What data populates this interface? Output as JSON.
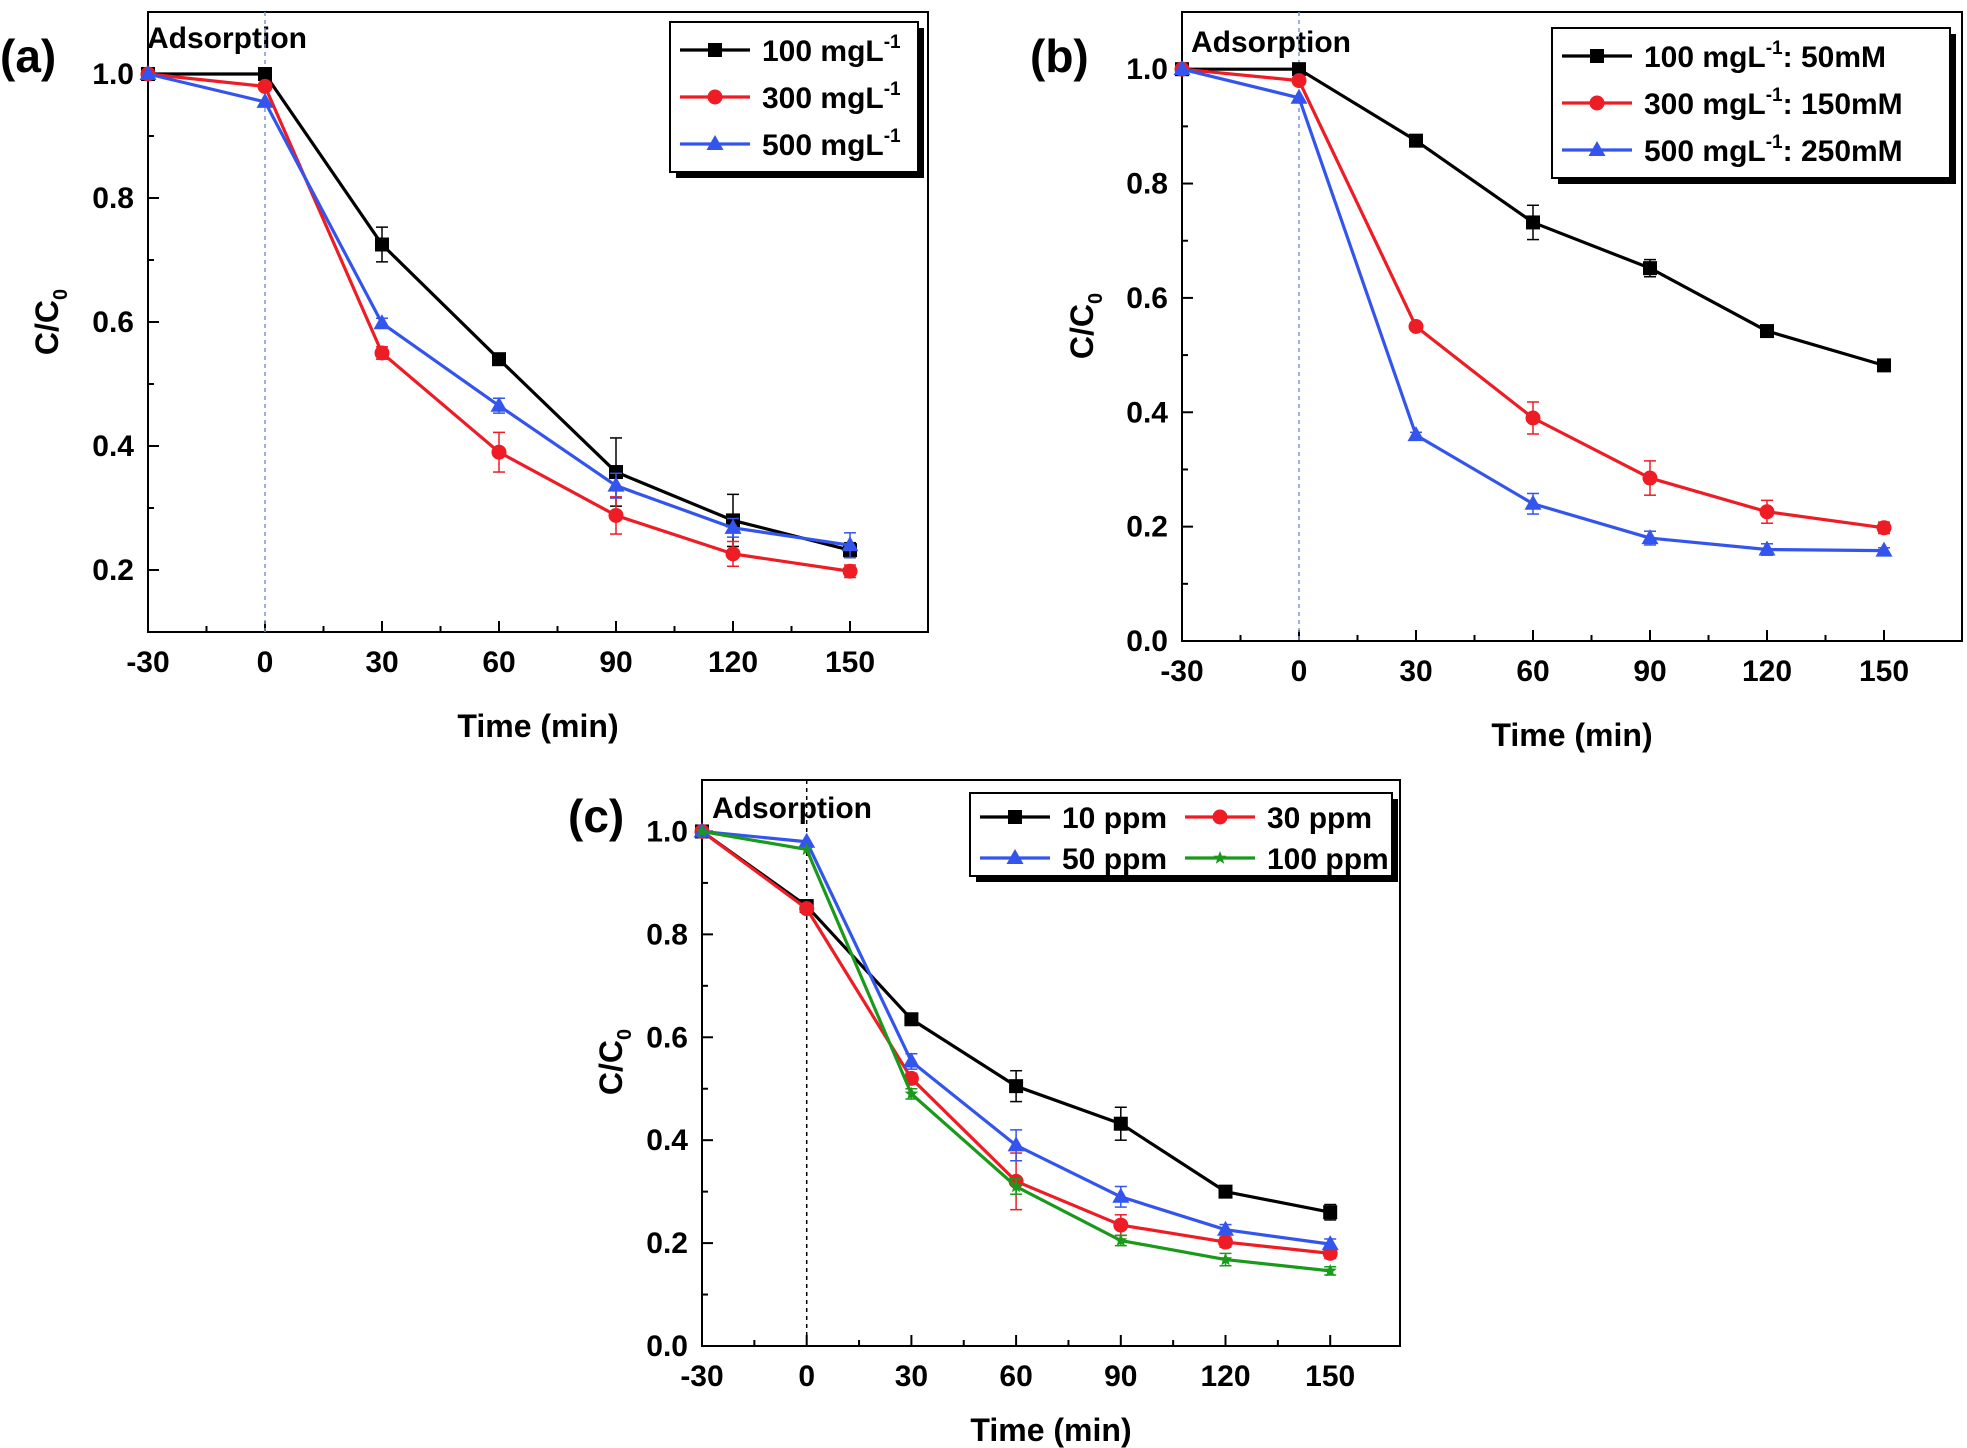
{
  "chart_data": [
    {
      "type": "line",
      "panel_label": "(a)",
      "annotation": "Adsorption",
      "xlabel": "Time (min)",
      "ylabel": "C/C",
      "ylabel_sub": "0",
      "x": [
        -30,
        0,
        30,
        60,
        90,
        120,
        150
      ],
      "xticks": [
        "-30",
        "0",
        "30",
        "60",
        "90",
        "120",
        "150"
      ],
      "yticks": [
        "0.2",
        "0.4",
        "0.6",
        "0.8",
        "1.0"
      ],
      "xlim": [
        -30,
        170
      ],
      "ylim": [
        0.1,
        1.1
      ],
      "vline_x": 0,
      "legend_position": "top-right",
      "series": [
        {
          "name": "100 mgL",
          "name_sup": "-1",
          "name_suffix": "",
          "color": "#000000",
          "marker": "square",
          "values": [
            1.0,
            1.0,
            0.725,
            0.54,
            0.358,
            0.28,
            0.232
          ],
          "errors": [
            0,
            0,
            0.028,
            0.006,
            0.055,
            0.042,
            0.012
          ]
        },
        {
          "name": "300 mgL",
          "name_sup": "-1",
          "name_suffix": "",
          "color": "#ee1c25",
          "marker": "circle",
          "values": [
            1.0,
            0.98,
            0.55,
            0.39,
            0.288,
            0.226,
            0.198
          ],
          "errors": [
            0,
            0,
            0.01,
            0.032,
            0.03,
            0.02,
            0.01
          ]
        },
        {
          "name": "500 mgL",
          "name_sup": "-1",
          "name_suffix": "",
          "color": "#3355ee",
          "marker": "triangle",
          "values": [
            1.0,
            0.955,
            0.598,
            0.465,
            0.336,
            0.268,
            0.24
          ],
          "errors": [
            0,
            0,
            0.008,
            0.012,
            0.02,
            0.015,
            0.02
          ]
        }
      ]
    },
    {
      "type": "line",
      "panel_label": "(b)",
      "annotation": "Adsorption",
      "xlabel": "Time (min)",
      "ylabel": "C/C",
      "ylabel_sub": "0",
      "x": [
        -30,
        0,
        30,
        60,
        90,
        120,
        150
      ],
      "xticks": [
        "-30",
        "0",
        "30",
        "60",
        "90",
        "120",
        "150"
      ],
      "yticks": [
        "0.0",
        "0.2",
        "0.4",
        "0.6",
        "0.8",
        "1.0"
      ],
      "xlim": [
        -30,
        170
      ],
      "ylim": [
        0,
        1.1
      ],
      "vline_x": 0,
      "legend_position": "top-right",
      "series": [
        {
          "name": "100 mgL",
          "name_sup": "-1",
          "name_suffix": ": 50mM",
          "color": "#000000",
          "marker": "square",
          "values": [
            1.0,
            1.0,
            0.875,
            0.732,
            0.652,
            0.542,
            0.482
          ],
          "errors": [
            0,
            0,
            0.005,
            0.03,
            0.015,
            0.005,
            0.005
          ]
        },
        {
          "name": "300 mgL",
          "name_sup": "-1",
          "name_suffix": ": 150mM",
          "color": "#ee1c25",
          "marker": "circle",
          "values": [
            1.0,
            0.98,
            0.55,
            0.39,
            0.285,
            0.226,
            0.198
          ],
          "errors": [
            0,
            0,
            0.005,
            0.028,
            0.03,
            0.02,
            0.01
          ]
        },
        {
          "name": "500 mgL",
          "name_sup": "-1",
          "name_suffix": ": 250mM",
          "color": "#3355ee",
          "marker": "triangle",
          "values": [
            1.0,
            0.95,
            0.36,
            0.24,
            0.18,
            0.16,
            0.158
          ],
          "errors": [
            0,
            0,
            0.005,
            0.018,
            0.012,
            0.01,
            0.005
          ]
        }
      ]
    },
    {
      "type": "line",
      "panel_label": "(c)",
      "annotation": "Adsorption",
      "xlabel": "Time (min)",
      "ylabel": "C/C",
      "ylabel_sub": "0",
      "x": [
        -30,
        0,
        30,
        60,
        90,
        120,
        150
      ],
      "xticks": [
        "-30",
        "0",
        "30",
        "60",
        "90",
        "120",
        "150"
      ],
      "yticks": [
        "0.0",
        "0.2",
        "0.4",
        "0.6",
        "0.8",
        "1.0"
      ],
      "xlim": [
        -30,
        170
      ],
      "ylim": [
        0,
        1.1
      ],
      "vline_x": 0,
      "legend_position": "top-right",
      "series": [
        {
          "name": "10 ppm",
          "name_sup": "",
          "name_suffix": "",
          "color": "#000000",
          "marker": "square",
          "values": [
            1.0,
            0.855,
            0.635,
            0.505,
            0.432,
            0.3,
            0.26
          ],
          "errors": [
            0,
            0,
            0.005,
            0.03,
            0.032,
            0.01,
            0.015
          ]
        },
        {
          "name": "30 ppm",
          "name_sup": "",
          "name_suffix": "",
          "color": "#ee1c25",
          "marker": "circle",
          "values": [
            1.0,
            0.85,
            0.52,
            0.32,
            0.235,
            0.202,
            0.18
          ],
          "errors": [
            0,
            0,
            0.01,
            0.055,
            0.02,
            0.01,
            0.01
          ]
        },
        {
          "name": "50 ppm",
          "name_sup": "",
          "name_suffix": "",
          "color": "#3355ee",
          "marker": "triangle",
          "values": [
            1.0,
            0.98,
            0.553,
            0.39,
            0.29,
            0.226,
            0.198
          ],
          "errors": [
            0,
            0,
            0.015,
            0.03,
            0.02,
            0.01,
            0.01
          ]
        },
        {
          "name": "100 ppm",
          "name_sup": "",
          "name_suffix": "",
          "color": "#1a9a1a",
          "marker": "star",
          "values": [
            1.0,
            0.965,
            0.49,
            0.31,
            0.205,
            0.168,
            0.146
          ],
          "errors": [
            0,
            0,
            0.01,
            0.015,
            0.01,
            0.012,
            0.008
          ]
        }
      ]
    }
  ]
}
